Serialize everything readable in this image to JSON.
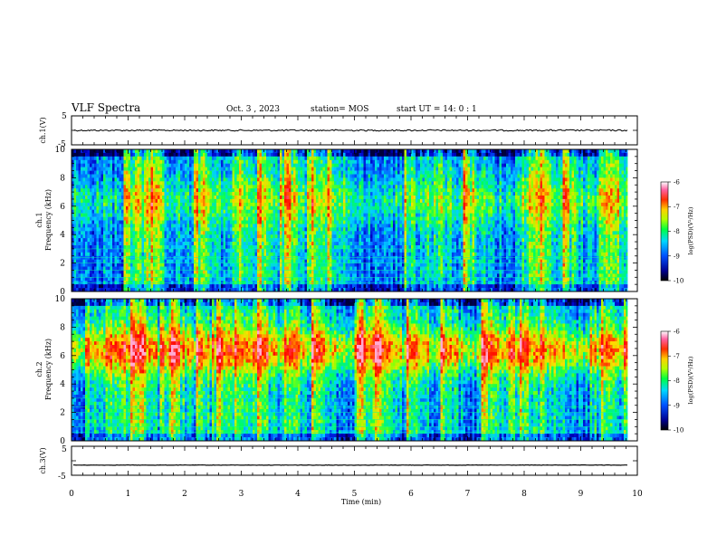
{
  "header": {
    "title": "VLF Spectra",
    "date": "Oct. 3  , 2023",
    "station": "station= MOS",
    "start": "start  UT =   14: 0  : 1"
  },
  "chart_data": [
    {
      "type": "line",
      "ylabel": "ch.1(V)",
      "yticks": [
        "5",
        "-5"
      ],
      "ylim": [
        -5,
        5
      ],
      "xlim": [
        0,
        10
      ],
      "signal_level": 0.0
    },
    {
      "type": "heatmap",
      "ylabel_lines": [
        "ch.1",
        "Frequency (kHz)"
      ],
      "yticks": [
        "0",
        "2",
        "4",
        "6",
        "8",
        "10"
      ],
      "ylim": [
        0,
        10
      ],
      "xlim": [
        0,
        9.83
      ],
      "colorbar": {
        "label": "log(PSD)(V²/Hz)",
        "ticks": [
          "-6",
          "-7",
          "-8",
          "-9",
          "-10"
        ],
        "range": [
          -10,
          -6
        ]
      },
      "band_center_khz": 6.5,
      "band_intensity": 0.35,
      "background_color": "#001a80"
    },
    {
      "type": "heatmap",
      "ylabel_lines": [
        "ch.2",
        "Frequency (kHz)"
      ],
      "yticks": [
        "0",
        "2",
        "4",
        "6",
        "8",
        "10"
      ],
      "ylim": [
        0,
        10
      ],
      "xlim": [
        0,
        9.83
      ],
      "colorbar": {
        "label": "log(PSD)(V²/Hz)",
        "ticks": [
          "-6",
          "-7",
          "-8",
          "-9",
          "-10"
        ],
        "range": [
          -10,
          -6
        ]
      },
      "band_center_khz": 6.5,
      "band_intensity": 0.75,
      "background_color": "#001a80"
    },
    {
      "type": "line",
      "ylabel": "ch.3(V)",
      "yticks": [
        "5",
        "-5"
      ],
      "ylim": [
        -5,
        5
      ],
      "xlim": [
        0,
        10
      ],
      "signal_level": -1.5
    }
  ],
  "xaxis": {
    "label": "Time  (min)",
    "ticks": [
      "0",
      "1",
      "2",
      "3",
      "4",
      "5",
      "6",
      "7",
      "8",
      "9",
      "10"
    ],
    "range": [
      0,
      10
    ]
  },
  "colormap": [
    "#000033",
    "#0000c8",
    "#0070ff",
    "#00d0ff",
    "#00ff80",
    "#80ff00",
    "#ffe000",
    "#ff8000",
    "#ff0000",
    "#ff80c0",
    "#ffffff"
  ]
}
